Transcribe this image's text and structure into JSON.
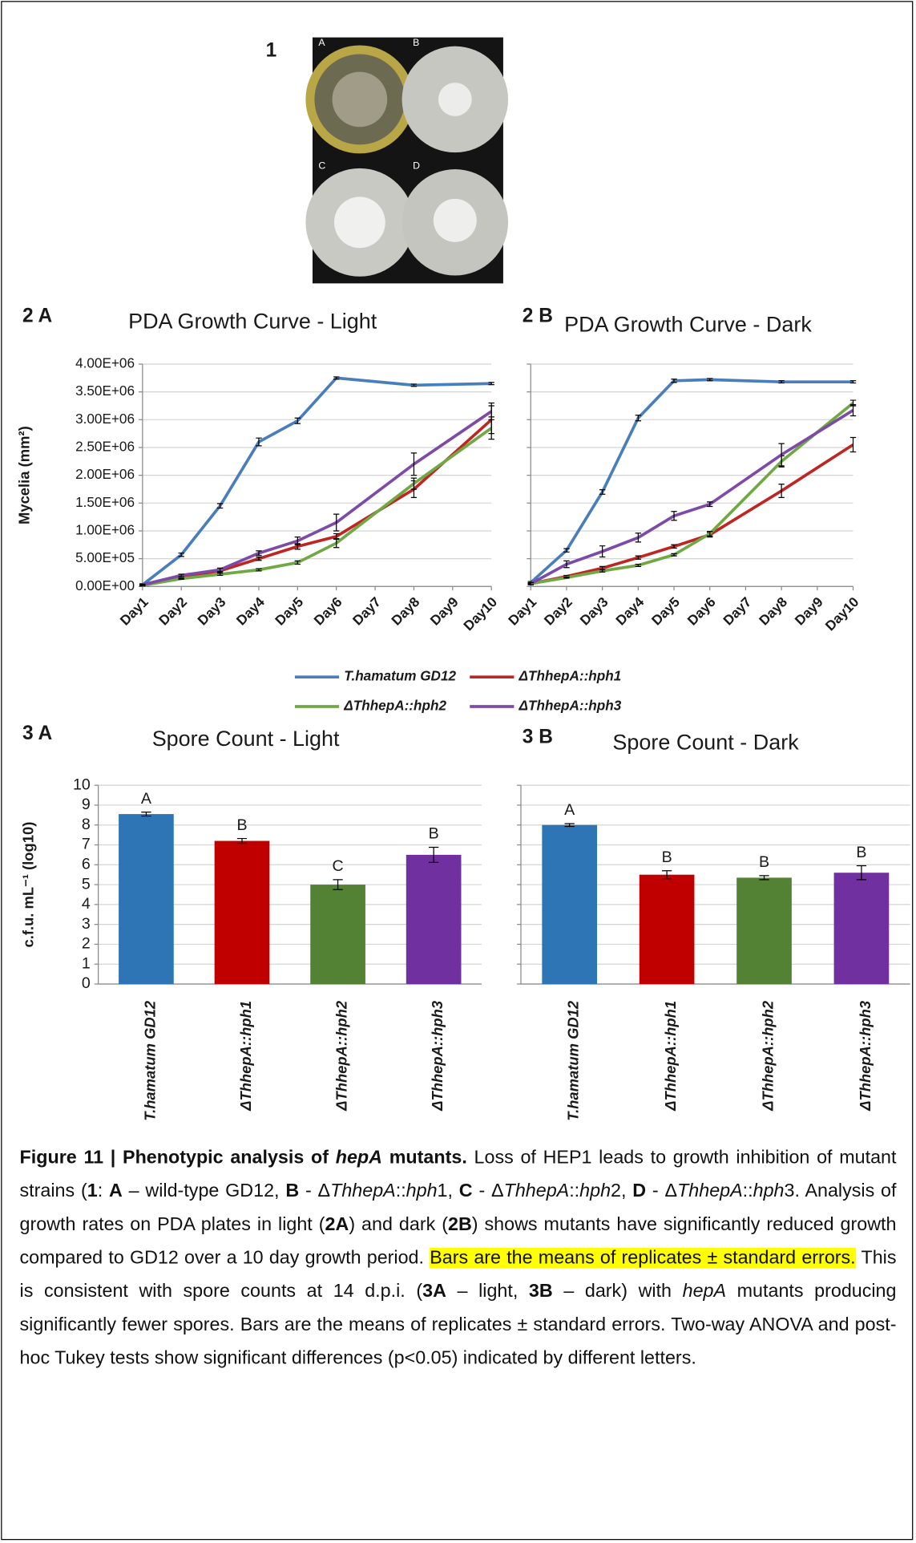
{
  "image": {
    "panel": "1",
    "labels": [
      "A",
      "B",
      "C",
      "D"
    ]
  },
  "chart_data": [
    {
      "type": "line",
      "panel": "2 A",
      "title": "PDA Growth Curve - Light",
      "y_label": "Mycelia (mm²)",
      "x": [
        1,
        2,
        3,
        4,
        5,
        6,
        8,
        10
      ],
      "xlim": [
        1,
        10
      ],
      "xticks": [
        {
          "value": 1,
          "label": "Day1"
        },
        {
          "value": 2,
          "label": "Day2"
        },
        {
          "value": 3,
          "label": "Day3"
        },
        {
          "value": 4,
          "label": "Day4"
        },
        {
          "value": 5,
          "label": "Day5"
        },
        {
          "value": 6,
          "label": "Day6"
        },
        {
          "value": 7,
          "label": "Day7"
        },
        {
          "value": 8,
          "label": "Day8"
        },
        {
          "value": 9,
          "label": "Day9"
        },
        {
          "value": 10,
          "label": "Day10"
        }
      ],
      "ylim": [
        0,
        4000000
      ],
      "yticks": [
        {
          "value": 0,
          "label": "0.00E+00"
        },
        {
          "value": 500000,
          "label": "5.00E+05"
        },
        {
          "value": 1000000,
          "label": "1.00E+06"
        },
        {
          "value": 1500000,
          "label": "1.50E+06"
        },
        {
          "value": 2000000,
          "label": "2.00E+06"
        },
        {
          "value": 2500000,
          "label": "2.50E+06"
        },
        {
          "value": 3000000,
          "label": "3.00E+06"
        },
        {
          "value": 3500000,
          "label": "3.50E+06"
        },
        {
          "value": 4000000,
          "label": "4.00E+06"
        }
      ],
      "grid": true,
      "legend": "bottom",
      "series": [
        {
          "name": "T.hamatum GD12",
          "color": "#4a7ebb",
          "values": [
            30000,
            570000,
            1450000,
            2600000,
            2980000,
            3750000,
            3620000,
            3650000
          ],
          "errors": [
            20000,
            30000,
            40000,
            70000,
            50000,
            20000,
            20000,
            20000
          ]
        },
        {
          "name": "ΔThhepA::hph1",
          "color": "#be2623",
          "values": [
            30000,
            180000,
            280000,
            500000,
            720000,
            900000,
            1750000,
            3000000
          ],
          "errors": [
            10000,
            20000,
            30000,
            30000,
            50000,
            50000,
            150000,
            250000
          ]
        },
        {
          "name": "ΔThhepA::hph2",
          "color": "#70a845",
          "values": [
            20000,
            140000,
            220000,
            300000,
            430000,
            780000,
            1850000,
            2850000
          ],
          "errors": [
            10000,
            10000,
            20000,
            20000,
            30000,
            80000,
            100000,
            200000
          ]
        },
        {
          "name": "ΔThhepA::hph3",
          "color": "#7d4aa8",
          "values": [
            30000,
            200000,
            300000,
            600000,
            820000,
            1150000,
            2200000,
            3150000
          ],
          "errors": [
            10000,
            20000,
            30000,
            40000,
            70000,
            150000,
            200000,
            150000
          ]
        }
      ]
    },
    {
      "type": "line",
      "panel": "2 B",
      "title": "PDA Growth Curve - Dark",
      "x": [
        1,
        2,
        3,
        4,
        5,
        6,
        8,
        10
      ],
      "xlim": [
        1,
        10
      ],
      "xticks": [
        {
          "value": 1,
          "label": "Day1"
        },
        {
          "value": 2,
          "label": "Day2"
        },
        {
          "value": 3,
          "label": "Day3"
        },
        {
          "value": 4,
          "label": "Day4"
        },
        {
          "value": 5,
          "label": "Day5"
        },
        {
          "value": 6,
          "label": "Day6"
        },
        {
          "value": 7,
          "label": "Day7"
        },
        {
          "value": 8,
          "label": "Day8"
        },
        {
          "value": 9,
          "label": "Day9"
        },
        {
          "value": 10,
          "label": "Day10"
        }
      ],
      "ylim": [
        0,
        4000000
      ],
      "yticks": [
        0,
        500000,
        1000000,
        1500000,
        2000000,
        2500000,
        3000000,
        3500000,
        4000000
      ],
      "ytick_labels": false,
      "grid": true,
      "series": [
        {
          "color": "#4a7ebb",
          "values": [
            70000,
            650000,
            1700000,
            3030000,
            3700000,
            3720000,
            3680000,
            3680000
          ],
          "errors": [
            20000,
            30000,
            40000,
            50000,
            30000,
            20000,
            20000,
            20000
          ]
        },
        {
          "color": "#be2623",
          "values": [
            50000,
            180000,
            330000,
            520000,
            720000,
            930000,
            1720000,
            2550000
          ],
          "errors": [
            10000,
            20000,
            30000,
            30000,
            30000,
            40000,
            120000,
            130000
          ]
        },
        {
          "color": "#70a845",
          "values": [
            50000,
            160000,
            280000,
            380000,
            570000,
            950000,
            2250000,
            3300000
          ],
          "errors": [
            10000,
            10000,
            20000,
            20000,
            20000,
            40000,
            100000,
            50000
          ]
        },
        {
          "color": "#7d4aa8",
          "values": [
            50000,
            400000,
            630000,
            880000,
            1270000,
            1480000,
            2370000,
            3170000
          ],
          "errors": [
            20000,
            60000,
            100000,
            80000,
            80000,
            40000,
            200000,
            100000
          ]
        }
      ]
    },
    {
      "type": "bar",
      "panel": "3 A",
      "title": "Spore Count - Light",
      "y_label": "c.f.u. mL⁻¹ (log10)",
      "categories": [
        "T.hamatum GD12",
        "ΔThhepA::hph1",
        "ΔThhepA::hph2",
        "ΔThhepA::hph3"
      ],
      "values": [
        8.55,
        7.2,
        5.0,
        6.5
      ],
      "errors": [
        0.1,
        0.12,
        0.25,
        0.38
      ],
      "colors": [
        "#2e75b6",
        "#c00000",
        "#548235",
        "#7030a0"
      ],
      "annotations": [
        "A",
        "B",
        "C",
        "B"
      ],
      "ylim": [
        0,
        10
      ],
      "yticks": [
        0,
        1,
        2,
        3,
        4,
        5,
        6,
        7,
        8,
        9,
        10
      ],
      "grid": true
    },
    {
      "type": "bar",
      "panel": "3 B",
      "title": "Spore Count - Dark",
      "categories": [
        "T.hamatum GD12",
        "ΔThhepA::hph1",
        "ΔThhepA::hph2",
        "ΔThhepA::hph3"
      ],
      "values": [
        8.0,
        5.5,
        5.35,
        5.6
      ],
      "errors": [
        0.07,
        0.2,
        0.1,
        0.35
      ],
      "colors": [
        "#2e75b6",
        "#c00000",
        "#548235",
        "#7030a0"
      ],
      "annotations": [
        "A",
        "B",
        "B",
        "B"
      ],
      "ylim": [
        0,
        10
      ],
      "yticks": [
        0,
        1,
        2,
        3,
        4,
        5,
        6,
        7,
        8,
        9,
        10
      ],
      "ytick_labels": false,
      "grid": true
    }
  ],
  "caption": [
    "Figure 11 | Phenotypic analysis of ",
    "hepA",
    " mutants.",
    " Loss of HEP1 leads to growth inhibition of mutant strains (",
    "1",
    ": ",
    "A",
    " – wild-type GD12, ",
    "B",
    " - Δ",
    "ThhepA",
    "::",
    "hph",
    "1, ",
    "C",
    " - Δ",
    "ThhepA",
    "::",
    "hph",
    "2, ",
    "D",
    " - Δ",
    "ThhepA",
    "::",
    "hph",
    "3. Analysis of growth rates on PDA plates in light (",
    "2A",
    ") and dark (",
    "2B",
    ") shows mutants have significantly reduced growth compared to GD12 over a 10 day growth period. ",
    "Bars are the means of replicates ± standard errors.",
    " This is consistent with spore counts at 14 d.p.i. (",
    "3A",
    " – light, ",
    "3B",
    " – dark) with ",
    "hepA",
    " mutants producing significantly fewer spores. Bars are the means of replicates ± standard errors. Two-way ANOVA and post-hoc Tukey tests show significant differences (p<0.05) indicated by different letters."
  ]
}
